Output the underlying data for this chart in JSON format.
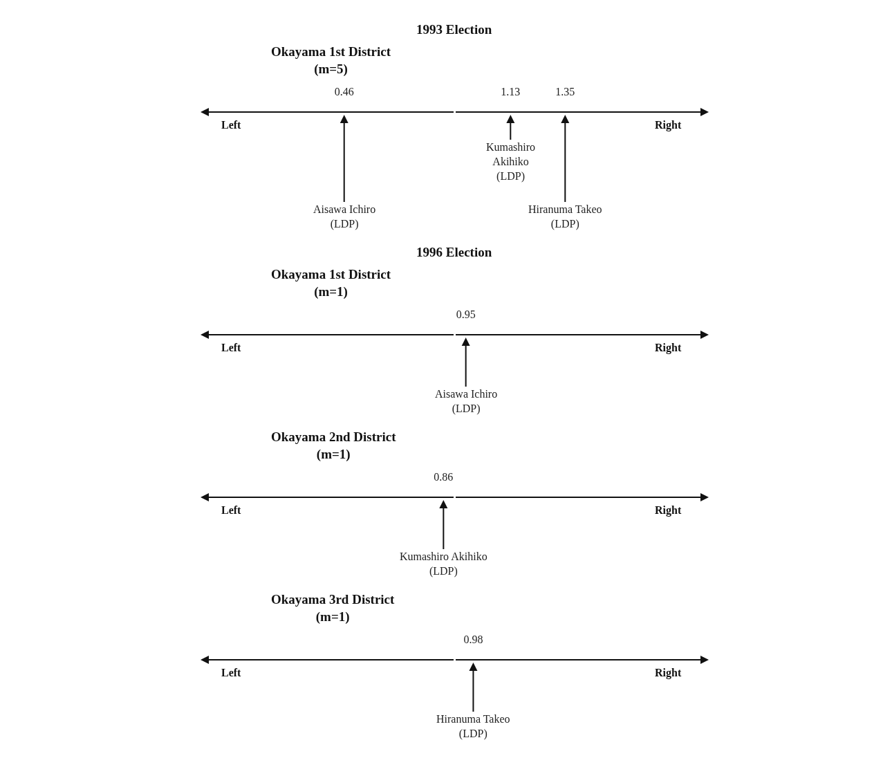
{
  "chart_data": [
    {
      "type": "other",
      "title": "1993 Election",
      "subtitle": "Okayama 1st District\n(m=5)",
      "categories": [
        "Aisawa Ichiro\n(LDP)",
        "Kumashiro\nAkihiko\n(LDP)",
        "Hiranuma Takeo\n(LDP)"
      ],
      "values": [
        0.46,
        1.13,
        1.35
      ],
      "data_labels": true,
      "annotations": [
        "Left",
        "Right"
      ]
    },
    {
      "type": "other",
      "title": "1996 Election",
      "subtitle": "Okayama 1st District\n(m=1)",
      "categories": [
        "Aisawa Ichiro\n(LDP)"
      ],
      "values": [
        0.95
      ],
      "data_labels": true,
      "annotations": [
        "Left",
        "Right"
      ]
    },
    {
      "type": "other",
      "subtitle": "Okayama 2nd District\n(m=1)",
      "categories": [
        "Kumashiro Akihiko\n(LDP)"
      ],
      "values": [
        0.86
      ],
      "data_labels": true,
      "annotations": [
        "Left",
        "Right"
      ]
    },
    {
      "type": "other",
      "subtitle": "Okayama 3rd District\n(m=1)",
      "categories": [
        "Hiranuma Takeo\n(LDP)"
      ],
      "values": [
        0.98
      ],
      "data_labels": true,
      "annotations": [
        "Left",
        "Right"
      ]
    }
  ]
}
